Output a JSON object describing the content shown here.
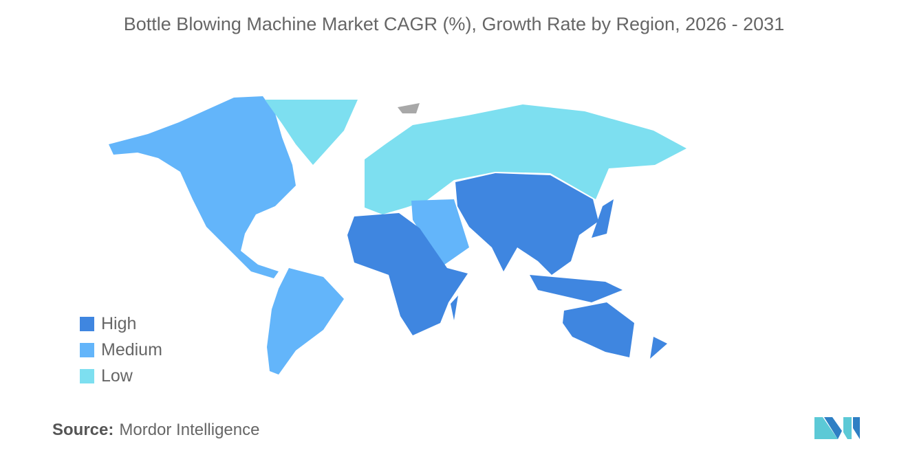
{
  "title": "Bottle Blowing Machine Market CAGR (%), Growth Rate by Region, 2026 - 2031",
  "colors": {
    "High": "#3f86e0",
    "Medium": "#63b5fa",
    "Low": "#7ddff0",
    "NoData": "#a8a8a8"
  },
  "legend": [
    {
      "label": "High",
      "color": "#3f86e0"
    },
    {
      "label": "Medium",
      "color": "#63b5fa"
    },
    {
      "label": "Low",
      "color": "#7ddff0"
    }
  ],
  "regions": {
    "North America": "Medium",
    "South America": "Medium",
    "Middle East": "Medium",
    "Europe": "Low",
    "Russia & Central": "Low",
    "Greenland": "Low",
    "Africa": "High",
    "Asia-Pacific": "High"
  },
  "source": {
    "label": "Source:",
    "value": "Mordor Intelligence"
  }
}
